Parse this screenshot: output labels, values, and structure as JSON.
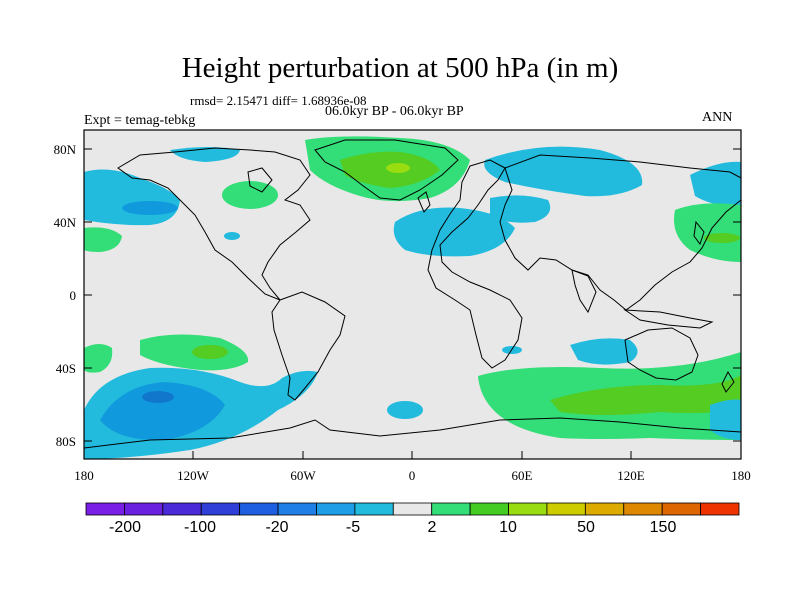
{
  "title": "Height perturbation at 500 hPa (in m)",
  "stats": "rmsd= 2.15471 diff= 1.68936e-08",
  "period": "06.0kyr BP - 06.0kyr BP",
  "experiment": "Expt = temag-tebkg",
  "season": "ANN",
  "map": {
    "lat_ticks": [
      "80N",
      "40N",
      "0",
      "40S",
      "80S"
    ],
    "lon_ticks": [
      "180",
      "120W",
      "60W",
      "0",
      "60E",
      "120E",
      "180"
    ],
    "background_color": "#e8e8e8",
    "regions": [
      {
        "name": "arctic-greenland-positive-anomaly",
        "level": 2,
        "color": "#33dd77"
      },
      {
        "name": "greenland-positive-core",
        "level": 10,
        "color": "#55cc22"
      },
      {
        "name": "north-pacific-negative-anomaly",
        "level": -5,
        "color": "#22bbdd"
      },
      {
        "name": "north-atlantic-negative-anomaly",
        "level": -5,
        "color": "#22bbdd"
      },
      {
        "name": "north-eurasia-negative-anomaly",
        "level": -5,
        "color": "#22bbdd"
      },
      {
        "name": "east-asia-positive-anomaly",
        "level": 2,
        "color": "#33dd77"
      },
      {
        "name": "south-pacific-negative-anomaly",
        "level": -20,
        "color": "#1199dd"
      },
      {
        "name": "south-pacific-negative-core",
        "level": -100,
        "color": "#1177cc"
      },
      {
        "name": "southern-ocean-positive-anomaly",
        "level": 2,
        "color": "#33dd77"
      },
      {
        "name": "south-atlantic-negative-anomaly",
        "level": -5,
        "color": "#22bbdd"
      }
    ]
  },
  "colorbar": {
    "colors": [
      "#7a1fe6",
      "#6a22e0",
      "#4a2ad8",
      "#2f3fd8",
      "#1e5ee0",
      "#1f7fe6",
      "#1e9ee6",
      "#22bbdd",
      "#e8e8e8",
      "#33dd77",
      "#44cc22",
      "#99dd11",
      "#cccc00",
      "#ddaa00",
      "#dd8800",
      "#dd6600",
      "#ee3300"
    ],
    "labels": [
      "-200",
      "-100",
      "-20",
      "-5",
      "2",
      "10",
      "50",
      "150"
    ]
  }
}
